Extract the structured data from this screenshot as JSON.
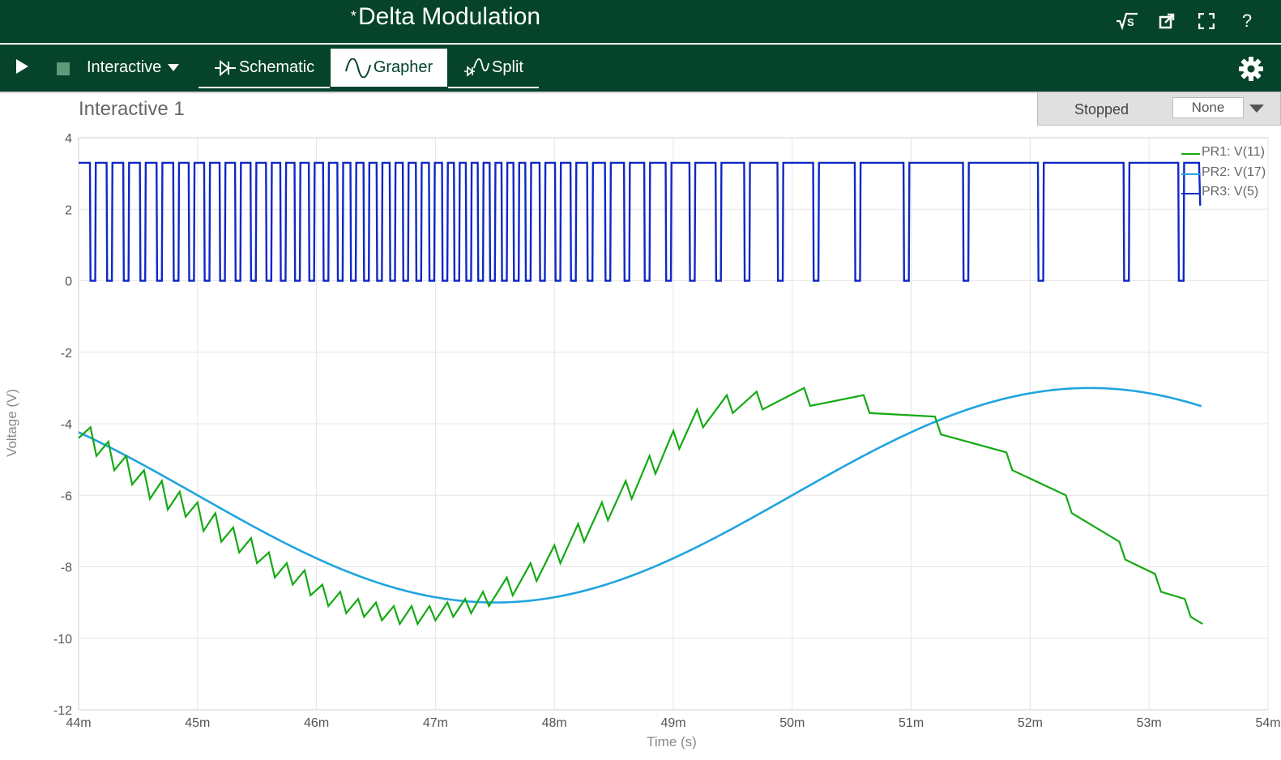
{
  "titlebar": {
    "modified_marker": "*",
    "title": "Delta Modulation",
    "help_label": "?"
  },
  "toolbar": {
    "mode_label": "Interactive",
    "tabs": [
      {
        "label": "Schematic",
        "active": false
      },
      {
        "label": "Grapher",
        "active": true
      },
      {
        "label": "Split",
        "active": false
      }
    ]
  },
  "graph": {
    "title": "Interactive 1",
    "status": "Stopped",
    "select_value": "None"
  },
  "colors": {
    "header_bg": "#05432a",
    "pr1": "#13aa13",
    "pr2": "#21a4e0",
    "pr3": "#1028c6"
  },
  "chart_data": {
    "type": "line",
    "xlabel": "Time (s)",
    "ylabel": "Voltage (V)",
    "xlim": [
      0.044,
      0.054
    ],
    "ylim": [
      -12,
      4
    ],
    "x_ticks": [
      "44m",
      "45m",
      "46m",
      "47m",
      "48m",
      "49m",
      "50m",
      "51m",
      "52m",
      "53m",
      "54m"
    ],
    "y_ticks": [
      "4",
      "2",
      "0",
      "-2",
      "-4",
      "-6",
      "-8",
      "-10",
      "-12"
    ],
    "grid": true,
    "legend_position": "top-right",
    "series": [
      {
        "name": "PR1: V(11)",
        "description_points": {
          "x": [
            0.044,
            0.0441,
            0.04415,
            0.04425,
            0.0443,
            0.0444,
            0.04445,
            0.04455,
            0.0446,
            0.0447,
            0.04475,
            0.04485,
            0.0449,
            0.045,
            0.04505,
            0.04515,
            0.0452,
            0.0453,
            0.04535,
            0.04545,
            0.0455,
            0.0456,
            0.04565,
            0.04575,
            0.0458,
            0.0459,
            0.04595,
            0.04605,
            0.0461,
            0.0462,
            0.04625,
            0.04635,
            0.0464,
            0.0465,
            0.04655,
            0.04665,
            0.0467,
            0.0468,
            0.04685,
            0.04695,
            0.047,
            0.0471,
            0.04715,
            0.04725,
            0.0473,
            0.0474,
            0.04745,
            0.0476,
            0.04765,
            0.0478,
            0.04785,
            0.048,
            0.04805,
            0.0482,
            0.04825,
            0.0484,
            0.04845,
            0.0486,
            0.04865,
            0.0488,
            0.04885,
            0.049,
            0.04905,
            0.0492,
            0.04925,
            0.04945,
            0.0495,
            0.0497,
            0.04975,
            0.0501,
            0.05015,
            0.0506,
            0.05065,
            0.0512,
            0.05125,
            0.0518,
            0.05185,
            0.0523,
            0.05235,
            0.05275,
            0.0528,
            0.05305,
            0.0531,
            0.0533,
            0.05335,
            0.05345
          ],
          "y": [
            -4.4,
            -4.1,
            -4.9,
            -4.5,
            -5.3,
            -4.9,
            -5.7,
            -5.3,
            -6.1,
            -5.6,
            -6.4,
            -5.9,
            -6.6,
            -6.2,
            -7.0,
            -6.5,
            -7.3,
            -6.9,
            -7.6,
            -7.2,
            -7.9,
            -7.6,
            -8.3,
            -7.9,
            -8.5,
            -8.1,
            -8.8,
            -8.5,
            -9.1,
            -8.7,
            -9.3,
            -8.9,
            -9.4,
            -9.0,
            -9.5,
            -9.1,
            -9.6,
            -9.1,
            -9.6,
            -9.1,
            -9.5,
            -9.0,
            -9.4,
            -8.9,
            -9.3,
            -8.7,
            -9.1,
            -8.3,
            -8.8,
            -7.9,
            -8.4,
            -7.4,
            -7.9,
            -6.8,
            -7.3,
            -6.2,
            -6.7,
            -5.6,
            -6.1,
            -4.9,
            -5.4,
            -4.2,
            -4.7,
            -3.6,
            -4.1,
            -3.2,
            -3.7,
            -3.1,
            -3.6,
            -3.0,
            -3.5,
            -3.2,
            -3.7,
            -3.8,
            -4.3,
            -4.8,
            -5.3,
            -6.0,
            -6.5,
            -7.3,
            -7.8,
            -8.2,
            -8.7,
            -8.9,
            -9.4,
            -9.6
          ]
        }
      },
      {
        "name": "PR2: V(17)",
        "sine": {
          "offset": -6,
          "amplitude": 3,
          "min_at": 0.0475,
          "period": 0.01
        }
      },
      {
        "name": "PR3: V(5)",
        "levels": [
          0,
          3.3
        ],
        "low_pulse_centers": [
          0.04412,
          0.04426,
          0.0444,
          0.04454,
          0.04468,
          0.04482,
          0.04495,
          0.04508,
          0.04521,
          0.04534,
          0.04547,
          0.0456,
          0.04572,
          0.04584,
          0.04596,
          0.04608,
          0.0462,
          0.04631,
          0.04642,
          0.04653,
          0.04664,
          0.04675,
          0.04686,
          0.04697,
          0.04708,
          0.04718,
          0.04728,
          0.04738,
          0.04748,
          0.04758,
          0.04768,
          0.04778,
          0.0479,
          0.04803,
          0.04816,
          0.0483,
          0.04845,
          0.04861,
          0.04878,
          0.04896,
          0.04916,
          0.04938,
          0.04962,
          0.0499,
          0.0502,
          0.05055,
          0.05096,
          0.05146,
          0.05209,
          0.05281,
          0.05327
        ],
        "low_pulse_width": 4e-05,
        "end_x": 0.05342
      }
    ]
  }
}
